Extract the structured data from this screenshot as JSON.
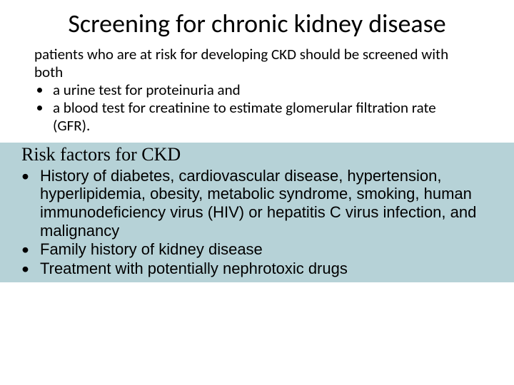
{
  "colors": {
    "background": "#ffffff",
    "text": "#000000",
    "band_bg": "#b6d2d7"
  },
  "typography": {
    "title_fontsize": 36,
    "intro_fontsize": 21,
    "subheading_fontsize": 26,
    "risk_fontsize": 22,
    "title_font": "Calibri",
    "subheading_font": "Garamond",
    "risk_font": "Verdana"
  },
  "title": "Screening for chronic kidney disease",
  "intro": "patients who are at risk for developing CKD should be screened with both",
  "top_bullets": [
    "a urine test for proteinuria and",
    "a blood test for creatinine to estimate glomerular filtration rate (GFR)."
  ],
  "subheading": "Risk factors for CKD",
  "risk_bullets": [
    "History of diabetes, cardiovascular disease, hypertension, hyperlipidemia, obesity, metabolic syndrome, smoking, human immunodeficiency virus (HIV) or hepatitis C virus infection, and malignancy",
    "Family history of kidney disease",
    "Treatment with potentially nephrotoxic drugs"
  ]
}
